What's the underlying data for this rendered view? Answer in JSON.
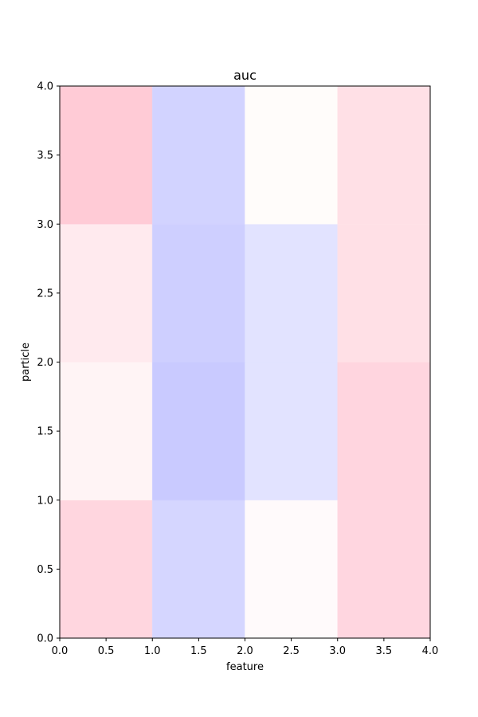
{
  "chart_data": {
    "type": "heatmap",
    "title": "auc",
    "xlabel": "feature",
    "ylabel": "particle",
    "xlim": [
      0.0,
      4.0
    ],
    "ylim": [
      0.0,
      4.0
    ],
    "x_ticks": [
      "0.0",
      "0.5",
      "1.0",
      "1.5",
      "2.0",
      "2.5",
      "3.0",
      "3.5",
      "4.0"
    ],
    "y_ticks": [
      "0.0",
      "0.5",
      "1.0",
      "1.5",
      "2.0",
      "2.5",
      "3.0",
      "3.5",
      "4.0"
    ],
    "grid": false,
    "cells": [
      {
        "x": 0,
        "y": 0,
        "color": "#ffd6df"
      },
      {
        "x": 1,
        "y": 0,
        "color": "#d5d6ff"
      },
      {
        "x": 2,
        "y": 0,
        "color": "#fffafb"
      },
      {
        "x": 3,
        "y": 0,
        "color": "#ffd6e0"
      },
      {
        "x": 0,
        "y": 1,
        "color": "#fff4f5"
      },
      {
        "x": 1,
        "y": 1,
        "color": "#c9caff"
      },
      {
        "x": 2,
        "y": 1,
        "color": "#e2e3ff"
      },
      {
        "x": 3,
        "y": 1,
        "color": "#ffd5df"
      },
      {
        "x": 0,
        "y": 2,
        "color": "#ffeaee"
      },
      {
        "x": 1,
        "y": 2,
        "color": "#cecfff"
      },
      {
        "x": 2,
        "y": 2,
        "color": "#e2e3ff"
      },
      {
        "x": 3,
        "y": 2,
        "color": "#ffe0e6"
      },
      {
        "x": 0,
        "y": 3,
        "color": "#ffcbd6"
      },
      {
        "x": 1,
        "y": 3,
        "color": "#d2d3ff"
      },
      {
        "x": 2,
        "y": 3,
        "color": "#fffcfa"
      },
      {
        "x": 3,
        "y": 3,
        "color": "#ffe0e6"
      }
    ]
  }
}
